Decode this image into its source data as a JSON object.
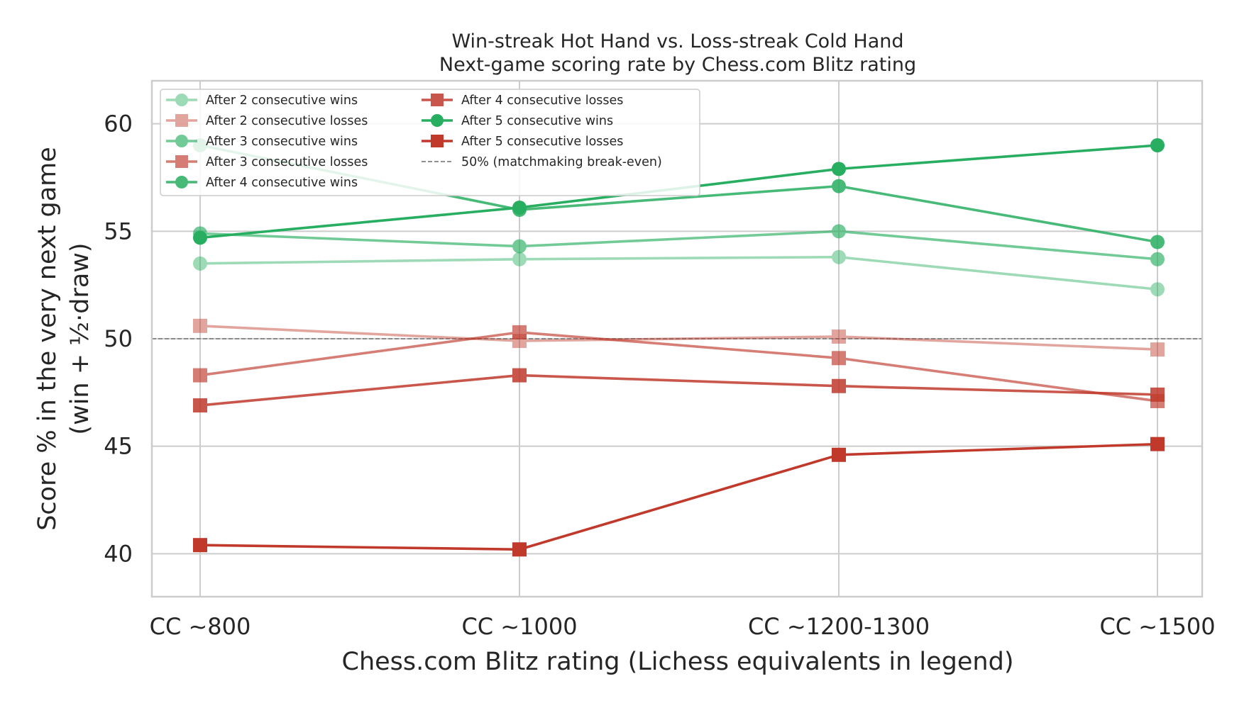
{
  "chart_data": {
    "type": "line",
    "title_lines": [
      "Win-streak Hot Hand vs. Loss-streak Cold Hand",
      "Next-game scoring rate by Chess.com Blitz rating"
    ],
    "xlabel": "Chess.com Blitz rating (Lichess equivalents in legend)",
    "ylabel_lines": [
      "Score % in the very next game",
      "(win + ½·draw)"
    ],
    "categories": [
      "CC ~800",
      "CC ~1000",
      "CC ~1200-1300",
      "CC ~1500"
    ],
    "ylim": [
      38,
      62
    ],
    "yticks": [
      40,
      45,
      50,
      55,
      60
    ],
    "grid": true,
    "legend_placement": "top-left",
    "series": [
      {
        "name": "After 2 consecutive wins",
        "values": [
          53.5,
          53.7,
          53.8,
          52.3
        ],
        "color": "#27ae60",
        "marker": "circle",
        "opacity": 0.45
      },
      {
        "name": "After 2 consecutive losses",
        "values": [
          50.6,
          49.9,
          50.1,
          49.5
        ],
        "color": "#c0392b",
        "marker": "square",
        "opacity": 0.45
      },
      {
        "name": "After 3 consecutive wins",
        "values": [
          54.9,
          54.3,
          55.0,
          53.7
        ],
        "color": "#27ae60",
        "marker": "circle",
        "opacity": 0.65
      },
      {
        "name": "After 3 consecutive losses",
        "values": [
          48.3,
          50.3,
          49.1,
          47.1
        ],
        "color": "#c0392b",
        "marker": "square",
        "opacity": 0.65
      },
      {
        "name": "After 4 consecutive wins",
        "values": [
          59.0,
          56.0,
          57.1,
          54.5
        ],
        "color": "#27ae60",
        "marker": "circle",
        "opacity": 0.85
      },
      {
        "name": "After 4 consecutive losses",
        "values": [
          46.9,
          48.3,
          47.8,
          47.4
        ],
        "color": "#c0392b",
        "marker": "square",
        "opacity": 0.85
      },
      {
        "name": "After 5 consecutive wins",
        "values": [
          54.7,
          56.1,
          57.9,
          59.0
        ],
        "color": "#27ae60",
        "marker": "circle",
        "opacity": 1.0
      },
      {
        "name": "After 5 consecutive losses",
        "values": [
          40.4,
          40.2,
          44.6,
          45.1
        ],
        "color": "#c0392b",
        "marker": "square",
        "opacity": 1.0
      }
    ],
    "reference_line": {
      "name": "50% (matchmaking break-even)",
      "value": 50,
      "color": "#808080",
      "style": "dashed"
    }
  }
}
